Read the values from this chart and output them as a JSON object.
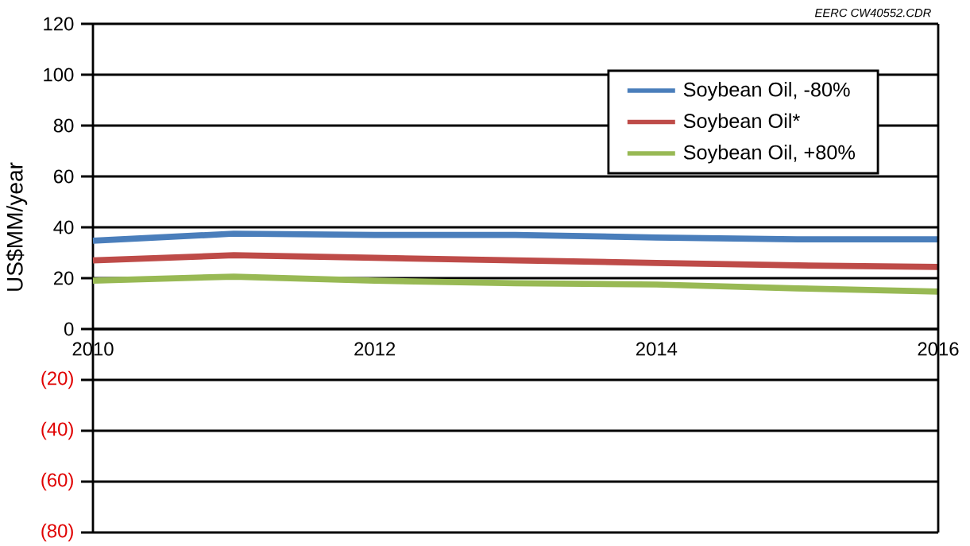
{
  "chart_data": {
    "type": "line",
    "ylabel": "US$MM/year",
    "annotations": [
      "EERC CW40552.CDR"
    ],
    "x": [
      2010,
      2011,
      2012,
      2013,
      2014,
      2015,
      2016
    ],
    "series": [
      {
        "name": "Soybean Oil, -80%",
        "color": "#4a7ebb",
        "values": [
          34.7,
          37.5,
          37,
          37,
          36,
          35.3,
          35.3
        ]
      },
      {
        "name": "Soybean Oil*",
        "color": "#be4b48",
        "values": [
          27,
          29,
          28,
          27,
          26,
          25,
          24.4
        ]
      },
      {
        "name": "Soybean Oil, +80%",
        "color": "#98b954",
        "values": [
          19,
          20.6,
          19,
          18,
          17.5,
          16,
          14.7
        ]
      }
    ],
    "xlim": [
      2010,
      2016
    ],
    "xticks": [
      2010,
      2012,
      2014,
      2016
    ],
    "ylim": [
      -80,
      120
    ],
    "yticks": [
      {
        "value": -80,
        "label": "(80)"
      },
      {
        "value": -60,
        "label": "(60)"
      },
      {
        "value": -40,
        "label": "(40)"
      },
      {
        "value": -20,
        "label": "(20)"
      },
      0,
      20,
      40,
      60,
      80,
      100,
      120
    ],
    "grid": "y",
    "legend": "top right",
    "marker": "none",
    "line_style": "solid"
  }
}
